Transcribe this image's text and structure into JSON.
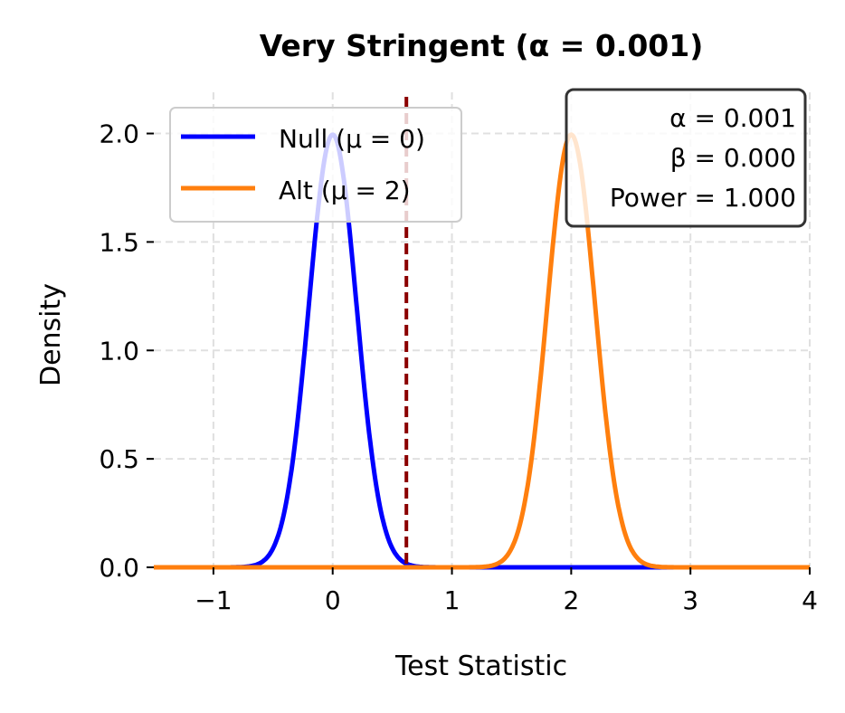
{
  "chart_data": {
    "type": "line",
    "title": "Very Stringent (α = 0.001)",
    "xlabel": "Test Statistic",
    "ylabel": "Density",
    "xlim": [
      -1.5,
      4
    ],
    "ylim": [
      0,
      2.19
    ],
    "xticks": [
      -1,
      0,
      1,
      2,
      3,
      4
    ],
    "xtick_labels": [
      "−1",
      "0",
      "1",
      "2",
      "3",
      "4"
    ],
    "yticks": [
      0,
      0.5,
      1.0,
      1.5,
      2.0
    ],
    "ytick_labels": [
      "0.0",
      "0.5",
      "1.0",
      "1.5",
      "2.0"
    ],
    "grid": true,
    "legend_position": "top-left",
    "series": [
      {
        "name": "Null (μ = 0)",
        "distribution": "normal",
        "mean": 0,
        "sd": 0.2,
        "color": "#0000ff"
      },
      {
        "name": "Alt (μ = 2)",
        "distribution": "normal",
        "mean": 2,
        "sd": 0.2,
        "color": "#ff7f0e"
      }
    ],
    "critical_value": 0.618,
    "critical_line_color": "#8b0000",
    "annotation": [
      "α = 0.001",
      "β = 0.000",
      "Power = 1.000"
    ]
  }
}
